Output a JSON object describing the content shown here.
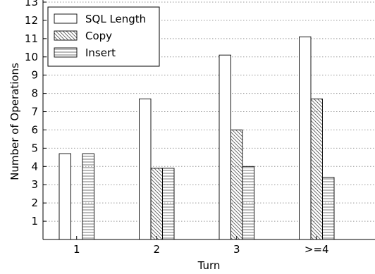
{
  "chart_data": {
    "type": "bar",
    "title": "",
    "xlabel": "Turn",
    "ylabel": "Number of Operations",
    "categories": [
      "1",
      "2",
      "3",
      ">=4"
    ],
    "series": [
      {
        "name": "SQL Length",
        "values": [
          4.7,
          7.7,
          10.1,
          11.1
        ],
        "pattern": "none"
      },
      {
        "name": "Copy",
        "values": [
          0,
          3.9,
          6.0,
          7.7
        ],
        "pattern": "diagonal"
      },
      {
        "name": "Insert",
        "values": [
          4.7,
          3.9,
          4.0,
          3.4
        ],
        "pattern": "horizontal"
      }
    ],
    "ylim": [
      0,
      13
    ],
    "yticks": [
      1,
      2,
      3,
      4,
      5,
      6,
      7,
      8,
      9,
      10,
      11,
      12,
      13
    ],
    "grid": "y-dotted",
    "legend_position": "top-left"
  }
}
